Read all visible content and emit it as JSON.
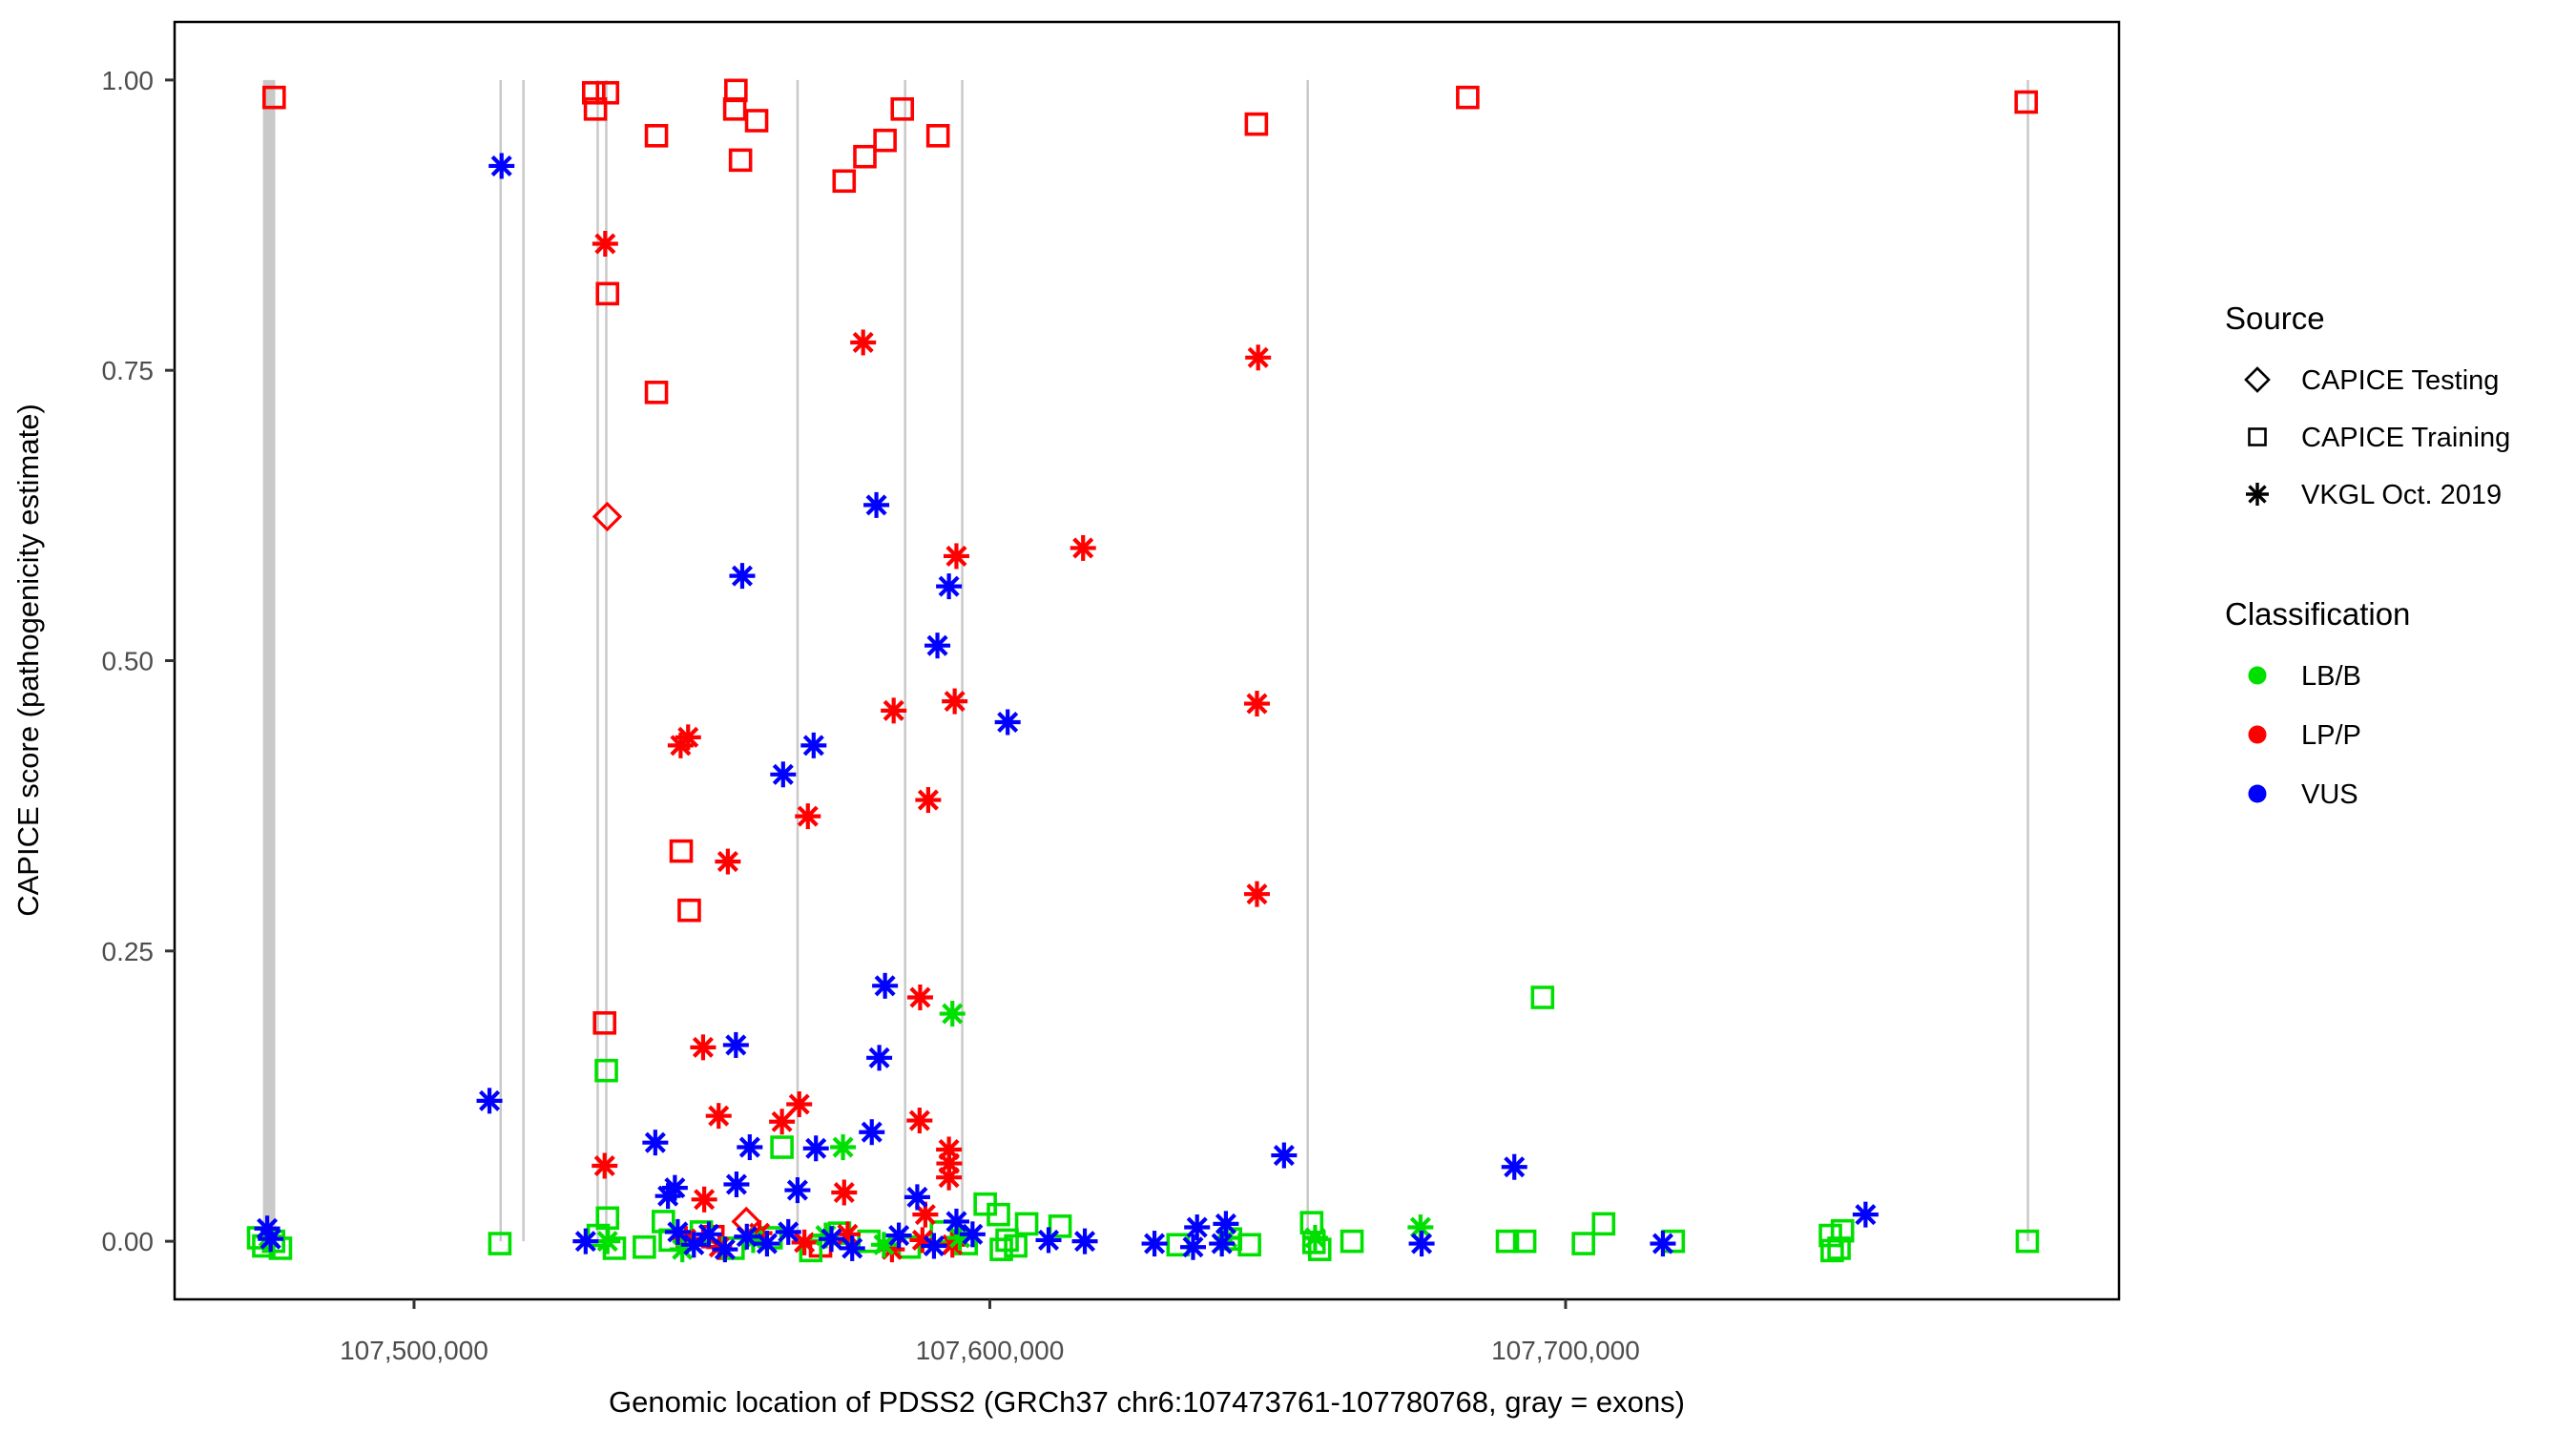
{
  "chart_data": {
    "type": "scatter",
    "title": "",
    "xlabel": "Genomic location of PDSS2 (GRCh37 chr6:107473761-107780768, gray = exons)",
    "ylabel": "CAPICE score (pathogenicity estimate)",
    "x_axis": {
      "min": 107458411,
      "max": 107796118,
      "ticks": [
        {
          "value": 107500000,
          "label": "107,500,000"
        },
        {
          "value": 107600000,
          "label": "107,600,000"
        },
        {
          "value": 107700000,
          "label": "107,700,000"
        }
      ]
    },
    "y_axis": {
      "min": -0.05,
      "max": 1.05,
      "ticks": [
        {
          "value": 0.0,
          "label": "0.00"
        },
        {
          "value": 0.25,
          "label": "0.25"
        },
        {
          "value": 0.5,
          "label": "0.50"
        },
        {
          "value": 0.75,
          "label": "0.75"
        },
        {
          "value": 1.0,
          "label": "1.00"
        }
      ]
    },
    "grid": false,
    "exon_color": "#C9C9C9",
    "exons": {
      "wide_band": {
        "start": 107473761,
        "end": 107475900
      },
      "lines": [
        107515041,
        107519008,
        107531901,
        107533388,
        107566612,
        107585289,
        107595207,
        107655217,
        107780300
      ]
    },
    "classification_colors": {
      "LB/B": "#00E000",
      "LP/P": "#FF0000",
      "VUS": "#0000FF"
    },
    "source_markers": {
      "CAPICE Testing": "diamond",
      "CAPICE Training": "square",
      "VKGL Oct. 2019": "asterisk"
    },
    "series": [
      {
        "source": "CAPICE Testing",
        "classification": "LP/P",
        "marker": "diamond",
        "points": [
          [
            107533550,
            0.624
          ],
          [
            107557700,
            0.017
          ]
        ]
      },
      {
        "source": "CAPICE Training",
        "classification": "LP/P",
        "marker": "square",
        "points": [
          [
            107475700,
            0.985
          ],
          [
            107531200,
            0.989
          ],
          [
            107533600,
            0.989
          ],
          [
            107531500,
            0.975
          ],
          [
            107542100,
            0.952
          ],
          [
            107555900,
            0.991
          ],
          [
            107555700,
            0.975
          ],
          [
            107559500,
            0.965
          ],
          [
            107556700,
            0.931
          ],
          [
            107574700,
            0.913
          ],
          [
            107578300,
            0.934
          ],
          [
            107581800,
            0.948
          ],
          [
            107584800,
            0.975
          ],
          [
            107591000,
            0.952
          ],
          [
            107646300,
            0.962
          ],
          [
            107683000,
            0.985
          ],
          [
            107780000,
            0.981
          ],
          [
            107533600,
            0.816
          ],
          [
            107542100,
            0.731
          ],
          [
            107546400,
            0.336
          ],
          [
            107547800,
            0.285
          ],
          [
            107533100,
            0.188
          ],
          [
            107551900,
            0.004
          ],
          [
            107570600,
            -0.004
          ]
        ]
      },
      {
        "source": "CAPICE Training",
        "classification": "LB/B",
        "marker": "square",
        "points": [
          [
            107696000,
            0.21
          ],
          [
            107533400,
            0.147
          ],
          [
            107563900,
            0.081
          ],
          [
            107543300,
            0.017
          ],
          [
            107533600,
            0.02
          ],
          [
            107599200,
            0.032
          ],
          [
            107601500,
            0.023
          ],
          [
            107514900,
            -0.002
          ],
          [
            107473000,
            0.003
          ],
          [
            107473900,
            -0.004
          ],
          [
            107475600,
            0.0
          ],
          [
            107476800,
            -0.006
          ],
          [
            107532000,
            0.005
          ],
          [
            107534800,
            -0.006
          ],
          [
            107544500,
            0.001
          ],
          [
            107549900,
            0.008
          ],
          [
            107555400,
            -0.006
          ],
          [
            107562000,
            0.003
          ],
          [
            107568900,
            -0.008
          ],
          [
            107573900,
            0.007
          ],
          [
            107579000,
            0.0
          ],
          [
            107586000,
            -0.005
          ],
          [
            107591600,
            0.008
          ],
          [
            107595900,
            -0.002
          ],
          [
            107540000,
            -0.005
          ],
          [
            107603000,
            0.001
          ],
          [
            107604500,
            -0.004
          ],
          [
            107606400,
            0.015
          ],
          [
            107612200,
            0.013
          ],
          [
            107602000,
            -0.007
          ],
          [
            107632700,
            -0.003
          ],
          [
            107641800,
            0.002
          ],
          [
            107645100,
            -0.003
          ],
          [
            107655900,
            0.016
          ],
          [
            107656300,
            -0.001
          ],
          [
            107657300,
            -0.007
          ],
          [
            107662900,
            0.0
          ],
          [
            107689900,
            0.0
          ],
          [
            107692900,
            0.0
          ],
          [
            107703100,
            -0.002
          ],
          [
            107706600,
            0.015
          ],
          [
            107718700,
            0.0
          ],
          [
            107746000,
            0.005
          ],
          [
            107748100,
            0.009
          ],
          [
            107747500,
            -0.006
          ],
          [
            107746300,
            -0.008
          ],
          [
            107780200,
            0.0
          ]
        ]
      },
      {
        "source": "VKGL Oct. 2019",
        "classification": "LP/P",
        "marker": "asterisk",
        "points": [
          [
            107533200,
            0.859
          ],
          [
            107578000,
            0.774
          ],
          [
            107646600,
            0.761
          ],
          [
            107594200,
            0.59
          ],
          [
            107616200,
            0.597
          ],
          [
            107646400,
            0.463
          ],
          [
            107646400,
            0.299
          ],
          [
            107583300,
            0.457
          ],
          [
            107593900,
            0.465
          ],
          [
            107546300,
            0.427
          ],
          [
            107547600,
            0.434
          ],
          [
            107568400,
            0.366
          ],
          [
            107589300,
            0.38
          ],
          [
            107554500,
            0.327
          ],
          [
            107587900,
            0.21
          ],
          [
            107550200,
            0.167
          ],
          [
            107552900,
            0.108
          ],
          [
            107563900,
            0.103
          ],
          [
            107566900,
            0.118
          ],
          [
            107587800,
            0.104
          ],
          [
            107592900,
            0.079
          ],
          [
            107592950,
            0.067
          ],
          [
            107592900,
            0.055
          ],
          [
            107550400,
            0.036
          ],
          [
            107574700,
            0.042
          ],
          [
            107588800,
            0.023
          ],
          [
            107533100,
            0.065
          ],
          [
            107547200,
            0.002
          ],
          [
            107553000,
            -0.005
          ],
          [
            107560000,
            0.007
          ],
          [
            107567800,
            -0.001
          ],
          [
            107575300,
            0.006
          ],
          [
            107583000,
            -0.007
          ],
          [
            107588300,
            0.001
          ],
          [
            107593500,
            -0.003
          ]
        ]
      },
      {
        "source": "VKGL Oct. 2019",
        "classification": "LB/B",
        "marker": "asterisk",
        "points": [
          [
            107593500,
            0.196
          ],
          [
            107574500,
            0.081
          ],
          [
            107474800,
            0.004
          ],
          [
            107533600,
            0.0
          ],
          [
            107546600,
            -0.007
          ],
          [
            107558900,
            0.001
          ],
          [
            107571500,
            0.005
          ],
          [
            107581600,
            -0.003
          ],
          [
            107594800,
            0.003
          ],
          [
            107641200,
            0.003
          ],
          [
            107656500,
            0.003
          ],
          [
            107674800,
            0.012
          ]
        ]
      },
      {
        "source": "VKGL Oct. 2019",
        "classification": "VUS",
        "marker": "asterisk",
        "points": [
          [
            107515200,
            0.926
          ],
          [
            107557000,
            0.573
          ],
          [
            107580300,
            0.634
          ],
          [
            107592900,
            0.564
          ],
          [
            107590900,
            0.513
          ],
          [
            107603100,
            0.447
          ],
          [
            107569400,
            0.427
          ],
          [
            107564100,
            0.402
          ],
          [
            107581800,
            0.22
          ],
          [
            107513100,
            0.121
          ],
          [
            107555900,
            0.169
          ],
          [
            107580800,
            0.158
          ],
          [
            107541900,
            0.085
          ],
          [
            107558300,
            0.081
          ],
          [
            107569800,
            0.08
          ],
          [
            107579500,
            0.094
          ],
          [
            107556000,
            0.049
          ],
          [
            107544100,
            0.039
          ],
          [
            107545300,
            0.046
          ],
          [
            107566600,
            0.044
          ],
          [
            107587400,
            0.038
          ],
          [
            107594200,
            0.017
          ],
          [
            107651100,
            0.074
          ],
          [
            107691100,
            0.064
          ],
          [
            107752100,
            0.023
          ],
          [
            107474500,
            0.011
          ],
          [
            107529800,
            0.0
          ],
          [
            107545800,
            0.008
          ],
          [
            107548600,
            -0.003
          ],
          [
            107551200,
            0.006
          ],
          [
            107554000,
            -0.007
          ],
          [
            107557800,
            0.004
          ],
          [
            107561300,
            -0.002
          ],
          [
            107565000,
            0.008
          ],
          [
            107572500,
            0.002
          ],
          [
            107576100,
            -0.006
          ],
          [
            107584200,
            0.005
          ],
          [
            107590300,
            -0.004
          ],
          [
            107597000,
            0.006
          ],
          [
            107610200,
            0.001
          ],
          [
            107616500,
            0.0
          ],
          [
            107628600,
            -0.002
          ],
          [
            107636000,
            0.012
          ],
          [
            107641000,
            0.015
          ],
          [
            107635300,
            -0.005
          ],
          [
            107640300,
            -0.002
          ],
          [
            107675000,
            -0.002
          ],
          [
            107716900,
            -0.002
          ],
          [
            107475100,
            0.002
          ]
        ]
      }
    ],
    "legend": {
      "source_title": "Source",
      "source_items": [
        {
          "label": "CAPICE Testing",
          "marker": "diamond"
        },
        {
          "label": "CAPICE Training",
          "marker": "square"
        },
        {
          "label": "VKGL Oct. 2019",
          "marker": "asterisk"
        }
      ],
      "classification_title": "Classification",
      "classification_items": [
        {
          "label": "LB/B",
          "color": "#00E000"
        },
        {
          "label": "LP/P",
          "color": "#FF0000"
        },
        {
          "label": "VUS",
          "color": "#0000FF"
        }
      ],
      "position": "right"
    },
    "panel": {
      "border_color": "#000000",
      "background": "#FFFFFF",
      "tick_label_color": "#4D4D4D"
    }
  }
}
